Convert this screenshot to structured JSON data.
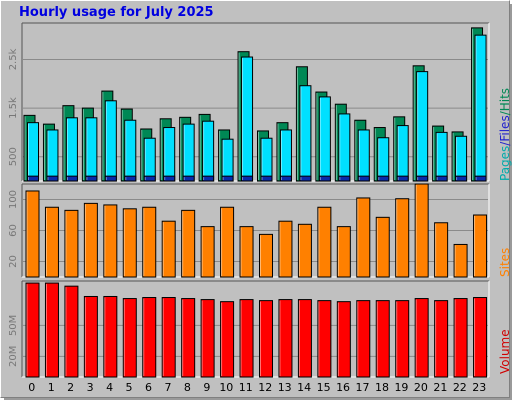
{
  "title": "Hourly usage for July 2025",
  "colors": {
    "pages": "#00aaaa",
    "files": "#2222cc",
    "hits": "#008855",
    "sites": "#ff8000",
    "volume": "#ff0000",
    "title": "#0000e0",
    "background": "#c0c0c0"
  },
  "chart_data": [
    {
      "type": "bar",
      "series": [
        {
          "name": "Pages",
          "values": [
            100,
            100,
            100,
            100,
            100,
            100,
            100,
            100,
            100,
            100,
            100,
            100,
            100,
            100,
            100,
            100,
            100,
            100,
            100,
            100,
            100,
            100,
            100,
            100
          ]
        },
        {
          "name": "Files",
          "values": [
            1200,
            1050,
            1300,
            1300,
            1650,
            1250,
            880,
            1100,
            1170,
            1230,
            860,
            2550,
            880,
            1050,
            1960,
            1730,
            1380,
            1050,
            890,
            1140,
            2250,
            1000,
            920,
            3000
          ]
        },
        {
          "name": "Hits",
          "values": [
            1350,
            1170,
            1550,
            1500,
            1850,
            1480,
            1070,
            1280,
            1310,
            1370,
            1050,
            2660,
            1030,
            1200,
            2350,
            1830,
            1580,
            1250,
            1100,
            1320,
            2370,
            1130,
            1010,
            3150
          ]
        }
      ],
      "categories": [
        "0",
        "1",
        "2",
        "3",
        "4",
        "5",
        "6",
        "7",
        "8",
        "9",
        "10",
        "11",
        "12",
        "13",
        "14",
        "15",
        "16",
        "17",
        "18",
        "19",
        "20",
        "21",
        "22",
        "23"
      ],
      "yticks": [
        "500",
        "1.5k",
        "2.5k"
      ],
      "ylabel": [
        "Pages",
        "/",
        "Files",
        "/",
        "Hits"
      ],
      "ylim": [
        0,
        3250
      ]
    },
    {
      "type": "bar",
      "series": [
        {
          "name": "Sites",
          "values": [
            111,
            90,
            86,
            95,
            93,
            88,
            90,
            72,
            86,
            65,
            90,
            65,
            55,
            72,
            68,
            90,
            65,
            102,
            77,
            101,
            120,
            70,
            42,
            80
          ]
        }
      ],
      "categories": [
        "0",
        "1",
        "2",
        "3",
        "4",
        "5",
        "6",
        "7",
        "8",
        "9",
        "10",
        "11",
        "12",
        "13",
        "14",
        "15",
        "16",
        "17",
        "18",
        "19",
        "20",
        "21",
        "22",
        "23"
      ],
      "yticks": [
        "20",
        "60",
        "100"
      ],
      "ylabel": "Sites",
      "ylim": [
        0,
        120
      ]
    },
    {
      "type": "bar",
      "series": [
        {
          "name": "Volume",
          "values": [
            91,
            91,
            88,
            78,
            78,
            76,
            77,
            77,
            76,
            75,
            73,
            75,
            74,
            75,
            75,
            74,
            73,
            74,
            74,
            74,
            76,
            74,
            76,
            77
          ]
        }
      ],
      "categories": [
        "0",
        "1",
        "2",
        "3",
        "4",
        "5",
        "6",
        "7",
        "8",
        "9",
        "10",
        "11",
        "12",
        "13",
        "14",
        "15",
        "16",
        "17",
        "18",
        "19",
        "20",
        "21",
        "22",
        "23"
      ],
      "yticks": [
        "20M",
        "50M"
      ],
      "ylabel": "Volume",
      "ylim": [
        0,
        93
      ]
    }
  ]
}
